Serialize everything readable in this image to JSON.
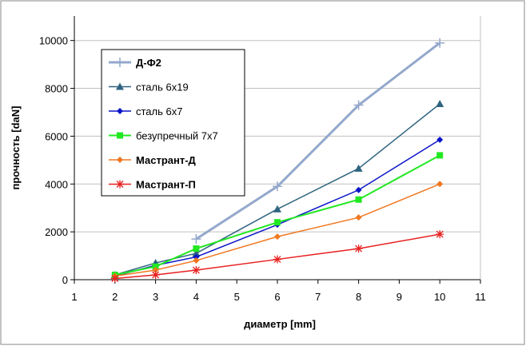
{
  "chart_data": {
    "type": "line",
    "xlabel": "диаметр [mm]",
    "ylabel": "прочность [daN]",
    "xlim": [
      1,
      11
    ],
    "ylim": [
      0,
      10000
    ],
    "xticks": [
      1,
      2,
      3,
      4,
      5,
      6,
      7,
      8,
      9,
      10,
      11
    ],
    "yticks": [
      0,
      2000,
      4000,
      6000,
      8000,
      10000
    ],
    "grid": "horizontal",
    "legend_position": "top-left",
    "series": [
      {
        "name": "Д-Ф2",
        "color": "#94a8cc",
        "marker": "plus",
        "bold": true,
        "width": 3,
        "x": [
          4,
          6,
          8,
          10
        ],
        "y": [
          1700,
          3900,
          7300,
          9900
        ]
      },
      {
        "name": "сталь 6x19",
        "color": "#2f6480",
        "marker": "triangle",
        "bold": false,
        "width": 1.5,
        "x": [
          2,
          3,
          4,
          6,
          8,
          10
        ],
        "y": [
          200,
          700,
          1100,
          2950,
          4650,
          7350
        ]
      },
      {
        "name": "сталь 6x7",
        "color": "#0a14c8",
        "marker": "diamond",
        "bold": false,
        "width": 1.5,
        "x": [
          2,
          3,
          4,
          6,
          8,
          10
        ],
        "y": [
          150,
          600,
          950,
          2300,
          3750,
          5850
        ]
      },
      {
        "name": "безупречный 7x7",
        "color": "#22e822",
        "marker": "square",
        "bold": false,
        "width": 2,
        "x": [
          2,
          3,
          4,
          6,
          8,
          10
        ],
        "y": [
          200,
          550,
          1300,
          2400,
          3350,
          5200
        ]
      },
      {
        "name": "Мастрант-Д",
        "color": "#f07820",
        "marker": "diamond",
        "bold": true,
        "width": 1.5,
        "x": [
          2,
          3,
          4,
          6,
          8,
          10
        ],
        "y": [
          150,
          400,
          800,
          1800,
          2600,
          4000
        ]
      },
      {
        "name": "Мастрант-П",
        "color": "#e82020",
        "marker": "star",
        "bold": true,
        "width": 1.5,
        "x": [
          2,
          3,
          4,
          6,
          8,
          10
        ],
        "y": [
          50,
          200,
          400,
          850,
          1300,
          1900
        ]
      }
    ]
  }
}
